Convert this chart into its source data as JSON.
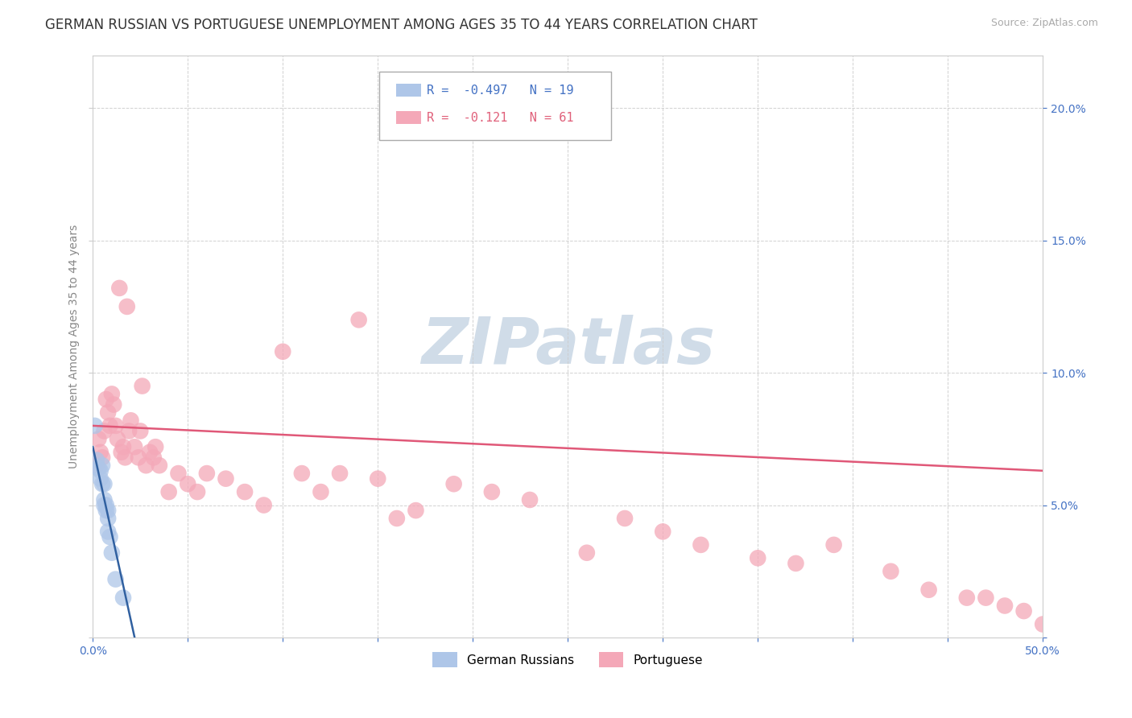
{
  "title": "GERMAN RUSSIAN VS PORTUGUESE UNEMPLOYMENT AMONG AGES 35 TO 44 YEARS CORRELATION CHART",
  "source": "Source: ZipAtlas.com",
  "ylabel": "Unemployment Among Ages 35 to 44 years",
  "xlim": [
    0.0,
    0.5
  ],
  "ylim": [
    0.0,
    0.22
  ],
  "xticks": [
    0.0,
    0.05,
    0.1,
    0.15,
    0.2,
    0.25,
    0.3,
    0.35,
    0.4,
    0.45,
    0.5
  ],
  "yticks": [
    0.0,
    0.05,
    0.1,
    0.15,
    0.2
  ],
  "xtick_labels": [
    "0.0%",
    "",
    "",
    "",
    "",
    "",
    "",
    "",
    "",
    "",
    "50.0%"
  ],
  "ytick_labels_right": [
    "",
    "5.0%",
    "10.0%",
    "15.0%",
    "20.0%"
  ],
  "background_color": "#ffffff",
  "grid_color": "#cccccc",
  "watermark_text": "ZIPatlas",
  "watermark_color": "#d0dce8",
  "german_russian_x": [
    0.001,
    0.002,
    0.003,
    0.004,
    0.004,
    0.005,
    0.005,
    0.006,
    0.006,
    0.006,
    0.007,
    0.007,
    0.008,
    0.008,
    0.008,
    0.009,
    0.01,
    0.012,
    0.016
  ],
  "german_russian_y": [
    0.08,
    0.067,
    0.064,
    0.063,
    0.06,
    0.065,
    0.058,
    0.058,
    0.052,
    0.05,
    0.05,
    0.048,
    0.048,
    0.045,
    0.04,
    0.038,
    0.032,
    0.022,
    0.015
  ],
  "german_russian_color": "#aec6e8",
  "german_russian_R": -0.497,
  "german_russian_N": 19,
  "portuguese_x": [
    0.002,
    0.003,
    0.004,
    0.005,
    0.006,
    0.007,
    0.008,
    0.009,
    0.01,
    0.011,
    0.012,
    0.013,
    0.014,
    0.015,
    0.016,
    0.017,
    0.018,
    0.019,
    0.02,
    0.022,
    0.024,
    0.025,
    0.026,
    0.028,
    0.03,
    0.032,
    0.033,
    0.035,
    0.04,
    0.045,
    0.05,
    0.055,
    0.06,
    0.07,
    0.08,
    0.09,
    0.1,
    0.11,
    0.12,
    0.13,
    0.14,
    0.15,
    0.16,
    0.17,
    0.19,
    0.21,
    0.23,
    0.26,
    0.28,
    0.3,
    0.32,
    0.35,
    0.37,
    0.39,
    0.42,
    0.44,
    0.46,
    0.47,
    0.48,
    0.49,
    0.5
  ],
  "portuguese_y": [
    0.065,
    0.075,
    0.07,
    0.068,
    0.078,
    0.09,
    0.085,
    0.08,
    0.092,
    0.088,
    0.08,
    0.075,
    0.132,
    0.07,
    0.072,
    0.068,
    0.125,
    0.078,
    0.082,
    0.072,
    0.068,
    0.078,
    0.095,
    0.065,
    0.07,
    0.068,
    0.072,
    0.065,
    0.055,
    0.062,
    0.058,
    0.055,
    0.062,
    0.06,
    0.055,
    0.05,
    0.108,
    0.062,
    0.055,
    0.062,
    0.12,
    0.06,
    0.045,
    0.048,
    0.058,
    0.055,
    0.052,
    0.032,
    0.045,
    0.04,
    0.035,
    0.03,
    0.028,
    0.035,
    0.025,
    0.018,
    0.015,
    0.015,
    0.012,
    0.01,
    0.005
  ],
  "portuguese_color": "#f4a8b8",
  "portuguese_R": -0.121,
  "portuguese_N": 61,
  "r_color_german": "#4472c4",
  "r_color_portuguese": "#e0607a",
  "title_fontsize": 12,
  "axis_label_fontsize": 10,
  "tick_fontsize": 10,
  "legend_fontsize": 11,
  "pt_trendline_x0": 0.0,
  "pt_trendline_y0": 0.08,
  "pt_trendline_x1": 0.5,
  "pt_trendline_y1": 0.063,
  "gr_trendline_x0": 0.0,
  "gr_trendline_y0": 0.072,
  "gr_trendline_x1": 0.022,
  "gr_trendline_y1": 0.0
}
